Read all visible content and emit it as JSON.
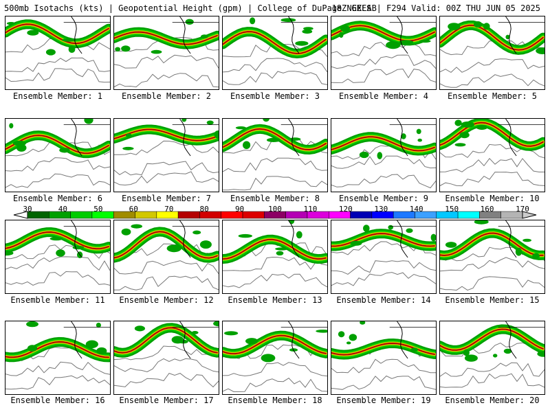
{
  "header": {
    "left": "500mb Isotachs (kts) | Geopotential Height (gpm) | College of DuPage NEXLAB",
    "right": "18Z GEFS | F294 Valid: 00Z THU JUN 05 2025"
  },
  "members": [
    {
      "caption": "Ensemble Member: 1"
    },
    {
      "caption": "Ensemble Member: 2"
    },
    {
      "caption": "Ensemble Member: 3"
    },
    {
      "caption": "Ensemble Member: 4"
    },
    {
      "caption": "Ensemble Member: 5"
    },
    {
      "caption": "Ensemble Member: 6"
    },
    {
      "caption": "Ensemble Member: 7"
    },
    {
      "caption": "Ensemble Member: 8"
    },
    {
      "caption": "Ensemble Member: 9"
    },
    {
      "caption": "Ensemble Member: 10"
    },
    {
      "caption": "Ensemble Member: 11"
    },
    {
      "caption": "Ensemble Member: 12"
    },
    {
      "caption": "Ensemble Member: 13"
    },
    {
      "caption": "Ensemble Member: 14"
    },
    {
      "caption": "Ensemble Member: 15"
    },
    {
      "caption": "Ensemble Member: 16"
    },
    {
      "caption": "Ensemble Member: 17"
    },
    {
      "caption": "Ensemble Member: 18"
    },
    {
      "caption": "Ensemble Member: 19"
    },
    {
      "caption": "Ensemble Member: 20"
    }
  ],
  "colorbar": {
    "labels": [
      "30",
      "40",
      "50",
      "60",
      "70",
      "80",
      "90",
      "100",
      "110",
      "120",
      "130",
      "140",
      "150",
      "160",
      "170"
    ],
    "colors": [
      "#006400",
      "#00a000",
      "#00cc00",
      "#00ff00",
      "#a08c00",
      "#d2c800",
      "#ffff00",
      "#b40000",
      "#d20000",
      "#ff0000",
      "#dc0000",
      "#8c0064",
      "#b400b4",
      "#dc00dc",
      "#ff00ff",
      "#0000b4",
      "#0000ff",
      "#1e78ff",
      "#3ca0ff",
      "#00c8ff",
      "#00ffff",
      "#808080",
      "#b4b4b4"
    ]
  }
}
